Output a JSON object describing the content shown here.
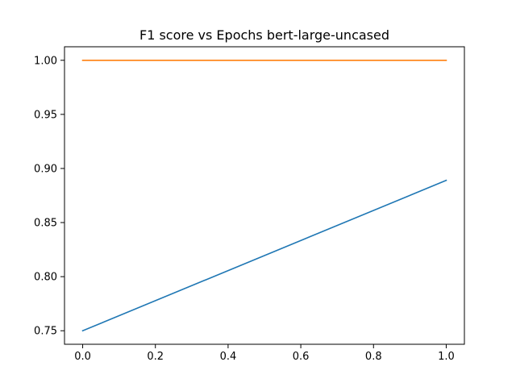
{
  "chart_data": {
    "type": "line",
    "title": "F1 score vs Epochs bert-large-uncased",
    "xlabel": "",
    "ylabel": "",
    "xlim": [
      -0.05,
      1.05
    ],
    "ylim": [
      0.7375,
      1.0125
    ],
    "xticks": [
      0.0,
      0.2,
      0.4,
      0.6,
      0.8,
      1.0
    ],
    "xtick_labels": [
      "0.0",
      "0.2",
      "0.4",
      "0.6",
      "0.8",
      "1.0"
    ],
    "yticks": [
      0.75,
      0.8,
      0.85,
      0.9,
      0.95,
      1.0
    ],
    "ytick_labels": [
      "0.75",
      "0.80",
      "0.85",
      "0.90",
      "0.95",
      "1.00"
    ],
    "grid": false,
    "legend": "none",
    "series": [
      {
        "color": "#1f77b4",
        "x": [
          0,
          1
        ],
        "y": [
          0.75,
          0.889
        ]
      },
      {
        "color": "#ff7f0e",
        "x": [
          0,
          1
        ],
        "y": [
          1.0,
          1.0
        ]
      }
    ]
  }
}
